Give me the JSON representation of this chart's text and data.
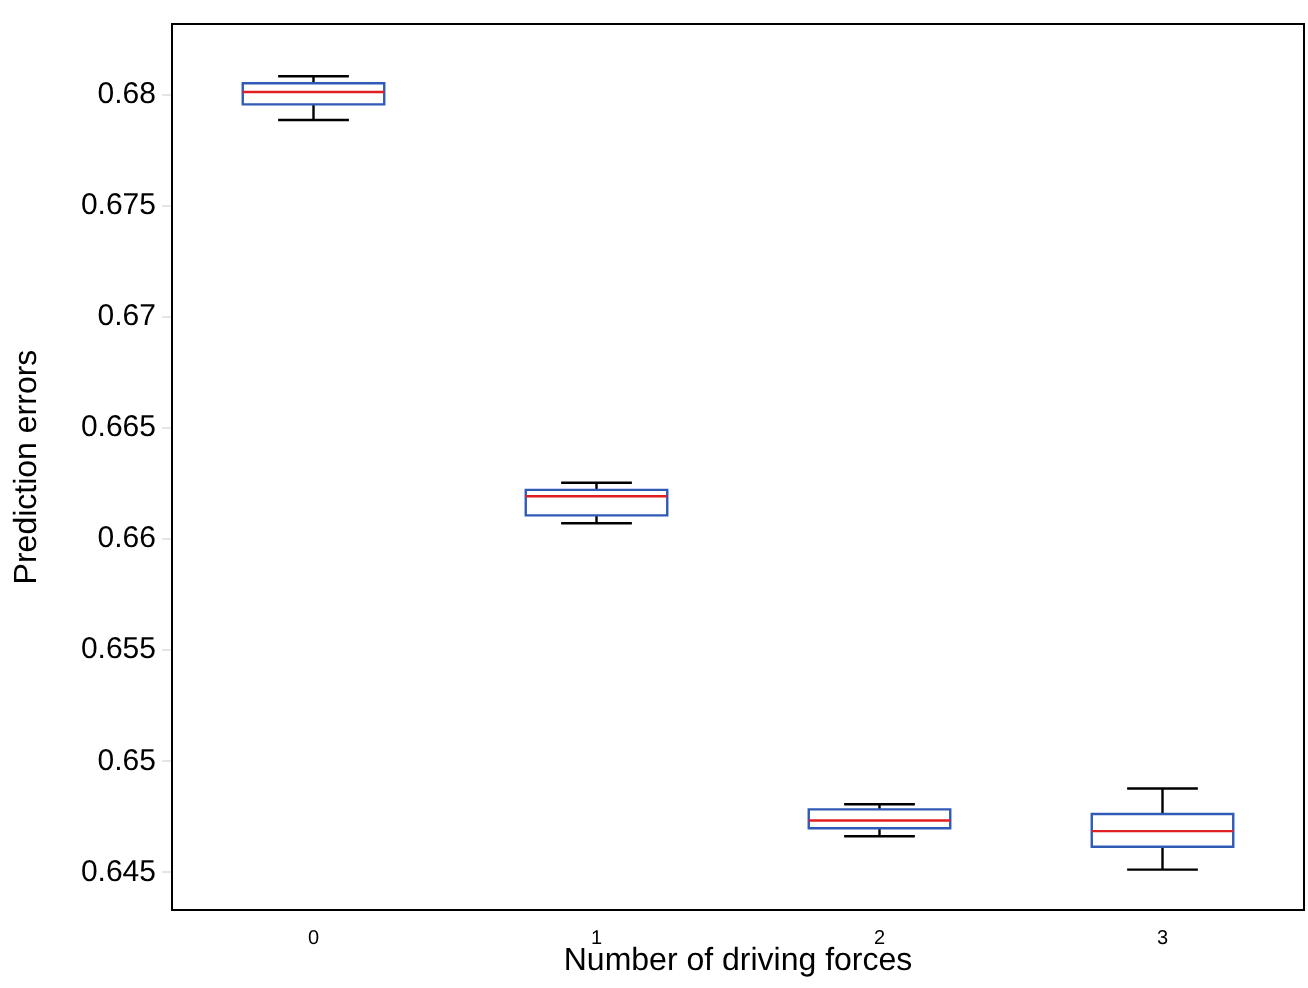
{
  "chart_data": {
    "type": "box",
    "xlabel": "Number of driving forces",
    "ylabel": "Prediction errors",
    "categories": [
      "0",
      "1",
      "2",
      "3"
    ],
    "color": "#2f5bb7",
    "boxes": [
      {
        "low": 0.67888,
        "q1": 0.67958,
        "median": 0.68014,
        "q3": 0.68053,
        "high": 0.68085
      },
      {
        "low": 0.66072,
        "q1": 0.66107,
        "median": 0.66193,
        "q3": 0.66222,
        "high": 0.66254
      },
      {
        "low": 0.64662,
        "q1": 0.64698,
        "median": 0.64733,
        "q3": 0.64783,
        "high": 0.64806
      },
      {
        "low": 0.64512,
        "q1": 0.64615,
        "median": 0.64685,
        "q3": 0.64762,
        "high": 0.64877
      }
    ],
    "ylim": [
      0.6433,
      0.6832
    ],
    "yticks": [
      0.645,
      0.65,
      0.655,
      0.66,
      0.665,
      0.67,
      0.675,
      0.68
    ],
    "grid": false
  }
}
